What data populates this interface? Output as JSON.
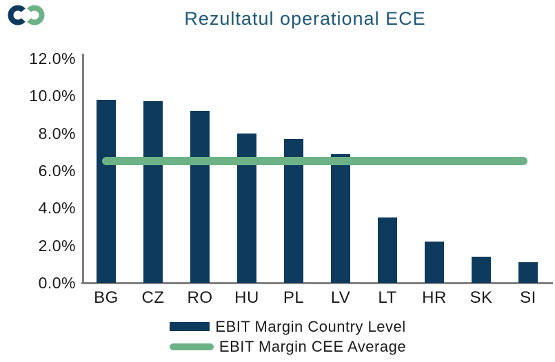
{
  "brand": {
    "logo_navy": "#0e3a5e",
    "logo_green": "#6db286"
  },
  "header": {
    "title": "Rezultatul operational ECE",
    "title_color": "#1e5878"
  },
  "chart_data": {
    "type": "bar",
    "title": "Rezultatul operational ECE",
    "categories": [
      "BG",
      "CZ",
      "RO",
      "HU",
      "PL",
      "LV",
      "LT",
      "HR",
      "SK",
      "SI"
    ],
    "series": [
      {
        "name": "EBIT Margin Country Level",
        "type": "bar",
        "color": "#0e3a5e",
        "values": [
          9.8,
          9.7,
          9.2,
          8.0,
          7.7,
          6.9,
          3.5,
          2.2,
          1.4,
          1.1
        ]
      },
      {
        "name": "EBIT Margin CEE Average",
        "type": "line",
        "color": "#6db286",
        "value": 6.5
      }
    ],
    "unit": "%",
    "ylim": [
      0,
      12
    ],
    "yticks": [
      {
        "value": 12,
        "label": "12.0%"
      },
      {
        "value": 10,
        "label": "10.0%"
      },
      {
        "value": 8,
        "label": "8.0%"
      },
      {
        "value": 6,
        "label": "6.0%"
      },
      {
        "value": 4,
        "label": "4.0%"
      },
      {
        "value": 2,
        "label": "2.0%"
      },
      {
        "value": 0,
        "label": "0.0%"
      }
    ],
    "grid": false,
    "legend_position": "bottom",
    "axis_color": "#7f7f7f",
    "text_color": "#1a1a1a"
  }
}
